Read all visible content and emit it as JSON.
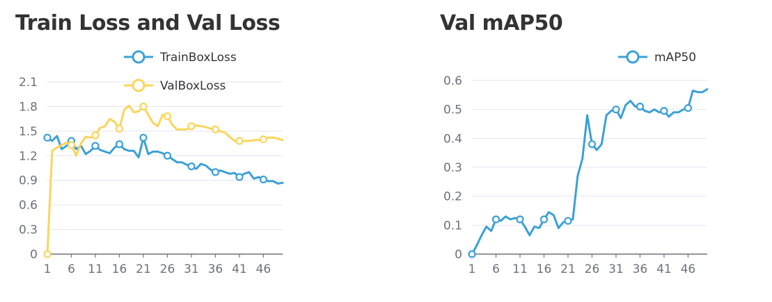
{
  "chart_data": [
    {
      "type": "line",
      "title": "Train Loss and Val Loss",
      "x": [
        1,
        2,
        3,
        4,
        5,
        6,
        7,
        8,
        9,
        10,
        11,
        12,
        13,
        14,
        15,
        16,
        17,
        18,
        19,
        20,
        21,
        22,
        23,
        24,
        25,
        26,
        27,
        28,
        29,
        30,
        31,
        32,
        33,
        34,
        35,
        36,
        37,
        38,
        39,
        40,
        41,
        42,
        43,
        44,
        45,
        46,
        47,
        48,
        49,
        50
      ],
      "xticks": [
        "1",
        "6",
        "11",
        "16",
        "21",
        "26",
        "31",
        "36",
        "41",
        "46"
      ],
      "yticks": [
        "0",
        "0.3",
        "0.6",
        "0.9",
        "1.2",
        "1.5",
        "1.8",
        "2.1"
      ],
      "ylim": [
        0,
        2.1
      ],
      "legend_position": "top-right",
      "grid": true,
      "series": [
        {
          "name": "TrainBoxLoss",
          "color": "#3ba0d6",
          "values": [
            1.42,
            1.38,
            1.44,
            1.28,
            1.32,
            1.38,
            1.28,
            1.32,
            1.22,
            1.26,
            1.32,
            1.27,
            1.25,
            1.23,
            1.3,
            1.34,
            1.28,
            1.26,
            1.26,
            1.18,
            1.42,
            1.22,
            1.25,
            1.25,
            1.23,
            1.2,
            1.16,
            1.12,
            1.12,
            1.09,
            1.07,
            1.04,
            1.1,
            1.08,
            1.03,
            1.0,
            1.02,
            1.0,
            0.98,
            0.99,
            0.94,
            0.98,
            1.0,
            0.92,
            0.94,
            0.91,
            0.89,
            0.89,
            0.86,
            0.87
          ]
        },
        {
          "name": "ValBoxLoss",
          "color": "#fad55c",
          "values": [
            0.0,
            1.26,
            1.3,
            1.33,
            1.36,
            1.33,
            1.2,
            1.35,
            1.43,
            1.42,
            1.45,
            1.54,
            1.56,
            1.65,
            1.61,
            1.53,
            1.76,
            1.81,
            1.73,
            1.74,
            1.8,
            1.7,
            1.6,
            1.56,
            1.7,
            1.68,
            1.58,
            1.52,
            1.52,
            1.52,
            1.56,
            1.57,
            1.56,
            1.55,
            1.53,
            1.52,
            1.5,
            1.48,
            1.43,
            1.38,
            1.38,
            1.38,
            1.38,
            1.39,
            1.39,
            1.4,
            1.42,
            1.42,
            1.41,
            1.39
          ]
        }
      ]
    },
    {
      "type": "line",
      "title": "Val mAP50",
      "x": [
        1,
        2,
        3,
        4,
        5,
        6,
        7,
        8,
        9,
        10,
        11,
        12,
        13,
        14,
        15,
        16,
        17,
        18,
        19,
        20,
        21,
        22,
        23,
        24,
        25,
        26,
        27,
        28,
        29,
        30,
        31,
        32,
        33,
        34,
        35,
        36,
        37,
        38,
        39,
        40,
        41,
        42,
        43,
        44,
        45,
        46,
        47,
        48,
        49,
        50
      ],
      "xticks": [
        "1",
        "6",
        "11",
        "16",
        "21",
        "26",
        "31",
        "36",
        "41",
        "46"
      ],
      "yticks": [
        "0",
        "0.1",
        "0.2",
        "0.3",
        "0.4",
        "0.5",
        "0.6"
      ],
      "ylim": [
        0,
        0.6
      ],
      "legend_position": "top-right",
      "grid": true,
      "series": [
        {
          "name": "mAP50",
          "color": "#3ba0d6",
          "values": [
            0.0,
            0.03,
            0.065,
            0.095,
            0.08,
            0.12,
            0.115,
            0.13,
            0.12,
            0.125,
            0.12,
            0.095,
            0.065,
            0.095,
            0.09,
            0.12,
            0.145,
            0.135,
            0.09,
            0.11,
            0.115,
            0.12,
            0.27,
            0.33,
            0.48,
            0.38,
            0.36,
            0.38,
            0.48,
            0.495,
            0.5,
            0.47,
            0.515,
            0.53,
            0.51,
            0.51,
            0.495,
            0.49,
            0.5,
            0.49,
            0.495,
            0.475,
            0.49,
            0.49,
            0.5,
            0.505,
            0.565,
            0.56,
            0.56,
            0.57
          ]
        }
      ]
    }
  ]
}
